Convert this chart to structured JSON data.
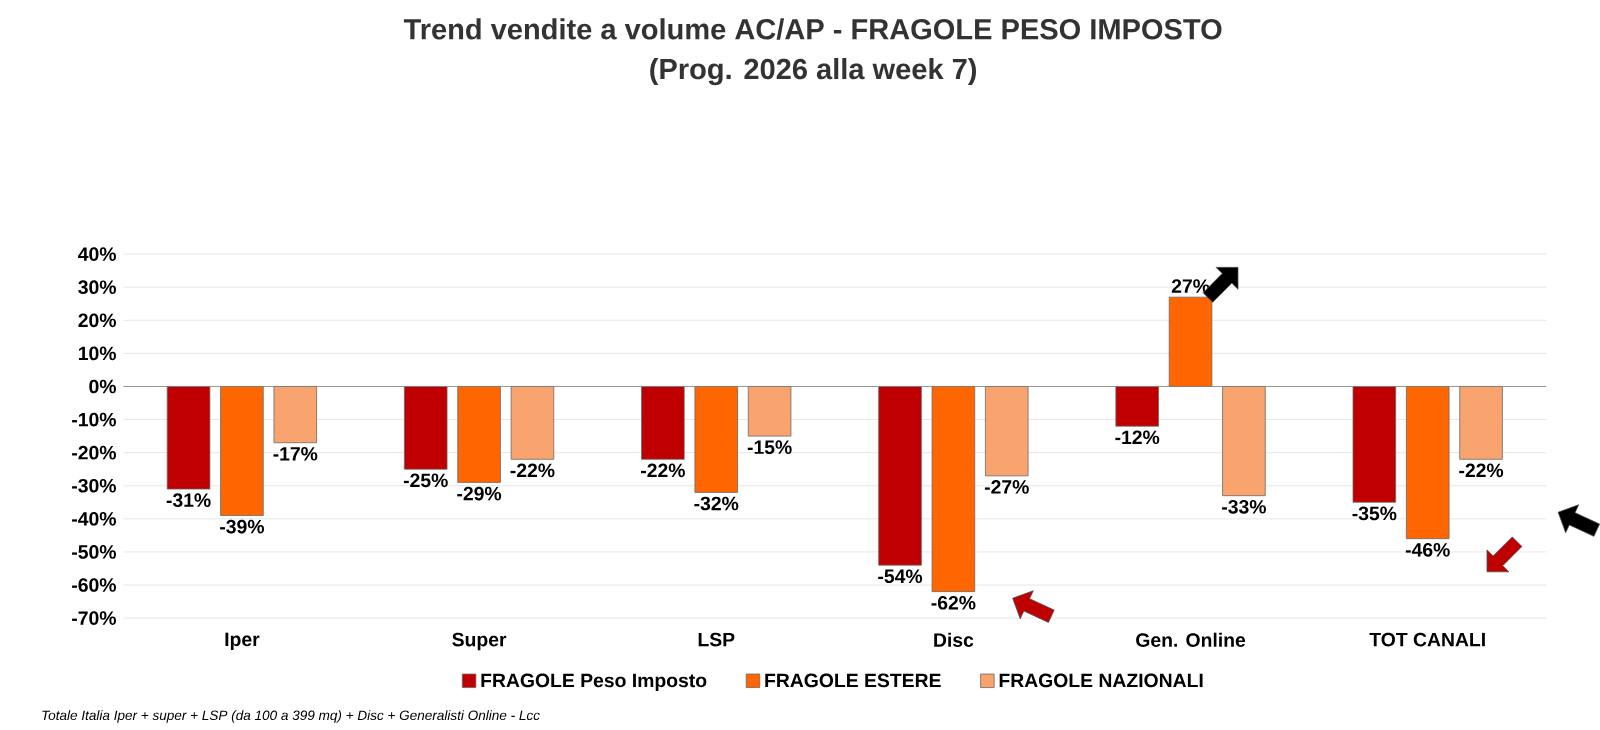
{
  "chart_data": {
    "type": "bar",
    "title": "Trend vendite a volume AC/AP - FRAGOLE PESO IMPOSTO",
    "subtitle": "(Prog. 2026 alla week 7)",
    "categories": [
      "Iper",
      "Super",
      "LSP",
      "Disc",
      "Gen. Online",
      "TOT CANALI"
    ],
    "series": [
      {
        "name": "FRAGOLE Peso Imposto",
        "color": "#c00000",
        "values": [
          -31,
          -25,
          -22,
          -54,
          -12,
          -35
        ],
        "value_labels": [
          "-31%",
          "-25%",
          "-22%",
          "-54%",
          "-12%",
          "-35%"
        ]
      },
      {
        "name": "FRAGOLE ESTERE",
        "color": "#ff6600",
        "values": [
          -39,
          -29,
          -32,
          -62,
          27,
          -46
        ],
        "value_labels": [
          "-39%",
          "-29%",
          "-32%",
          "-62%",
          "27%",
          "-46%"
        ]
      },
      {
        "name": "FRAGOLE NAZIONALI",
        "color": "#f9a36e",
        "values": [
          -17,
          -22,
          -15,
          -27,
          -33,
          -22
        ],
        "value_labels": [
          "-17%",
          "-22%",
          "-15%",
          "-27%",
          "-33%",
          "-22%"
        ]
      }
    ],
    "ylim": [
      -70,
      40
    ],
    "yticks": [
      {
        "value": -70,
        "label": "-70%"
      },
      {
        "value": -60,
        "label": "-60%"
      },
      {
        "value": -50,
        "label": "-50%"
      },
      {
        "value": -40,
        "label": "-40%"
      },
      {
        "value": -30,
        "label": "-30%"
      },
      {
        "value": -20,
        "label": "-20%"
      },
      {
        "value": -10,
        "label": "-10%"
      },
      {
        "value": 0,
        "label": "0%"
      },
      {
        "value": 10,
        "label": "10%"
      },
      {
        "value": 20,
        "label": "20%"
      },
      {
        "value": 30,
        "label": "30%"
      },
      {
        "value": 40,
        "label": "40%"
      }
    ],
    "grid": "y",
    "legend": "bottom",
    "annotations": [
      "Totale Italia Iper + super + LSP (da 100 a 399 mq) + Disc + Generalisti Online - Lcc"
    ]
  }
}
